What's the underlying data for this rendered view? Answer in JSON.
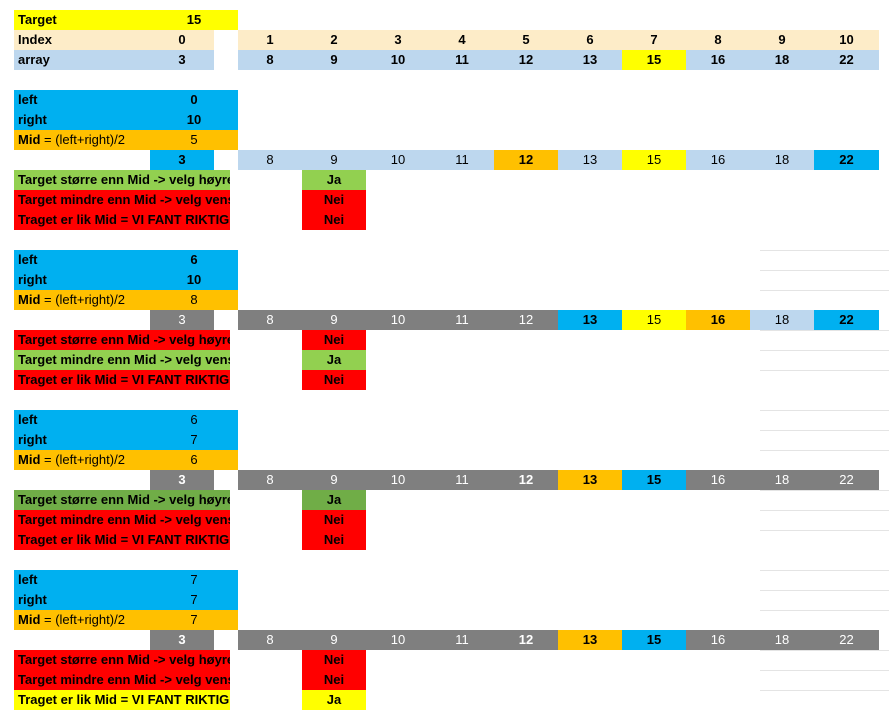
{
  "colors": {
    "yellow": "#ffff00",
    "cream": "#fdecc8",
    "lightblue": "#bdd7ee",
    "blue": "#00b0f0",
    "orange": "#ffc000",
    "gray": "#7f7f7f",
    "green": "#92d050",
    "darkgreen": "#70ad47",
    "red": "#ff0000"
  },
  "header": {
    "target_label": "Target",
    "target_value": "15",
    "index_label": "Index",
    "array_label": "array",
    "indices": [
      "0",
      "1",
      "2",
      "3",
      "4",
      "5",
      "6",
      "7",
      "8",
      "9",
      "10"
    ],
    "values": [
      "3",
      "8",
      "9",
      "10",
      "11",
      "12",
      "13",
      "15",
      "16",
      "18",
      "22"
    ],
    "target_index": 7
  },
  "steps": [
    {
      "left_label": "left",
      "left": "0",
      "right_label": "right",
      "right": "10",
      "mid_label_bold": "Mid",
      "mid_label_rest": " = (left+right)/2",
      "mid": "5",
      "cells": [
        {
          "v": "3",
          "c": "blue",
          "b": true
        },
        {
          "v": "8",
          "c": "lightblue",
          "b": false
        },
        {
          "v": "9",
          "c": "lightblue",
          "b": false
        },
        {
          "v": "10",
          "c": "lightblue",
          "b": false
        },
        {
          "v": "11",
          "c": "lightblue",
          "b": false
        },
        {
          "v": "12",
          "c": "orange",
          "b": true
        },
        {
          "v": "13",
          "c": "lightblue",
          "b": false
        },
        {
          "v": "15",
          "c": "yellow",
          "b": false
        },
        {
          "v": "16",
          "c": "lightblue",
          "b": false
        },
        {
          "v": "18",
          "c": "lightblue",
          "b": false
        },
        {
          "v": "22",
          "c": "blue",
          "b": true
        }
      ],
      "conditions": [
        {
          "text": "Target større enn Mid -> velg høyre",
          "answer": "Ja",
          "c": "green"
        },
        {
          "text": "Target mindre enn Mid -> velg venstre",
          "answer": "Nei",
          "c": "red"
        },
        {
          "text": "Traget er lik Mid = VI FANT RIKTIG INDEX",
          "answer": "Nei",
          "c": "red"
        }
      ]
    },
    {
      "left_label": "left",
      "left": "6",
      "right_label": "right",
      "right": "10",
      "mid_label_bold": "Mid",
      "mid_label_rest": " = (left+right)/2",
      "mid": "8",
      "cells": [
        {
          "v": "3",
          "c": "gray",
          "b": false
        },
        {
          "v": "8",
          "c": "gray",
          "b": false
        },
        {
          "v": "9",
          "c": "gray",
          "b": false
        },
        {
          "v": "10",
          "c": "gray",
          "b": false
        },
        {
          "v": "11",
          "c": "gray",
          "b": false
        },
        {
          "v": "12",
          "c": "gray",
          "b": false
        },
        {
          "v": "13",
          "c": "blue",
          "b": true
        },
        {
          "v": "15",
          "c": "yellow",
          "b": false
        },
        {
          "v": "16",
          "c": "orange",
          "b": true
        },
        {
          "v": "18",
          "c": "lightblue",
          "b": false
        },
        {
          "v": "22",
          "c": "blue",
          "b": true
        }
      ],
      "conditions": [
        {
          "text": "Target større enn Mid -> velg høyre",
          "answer": "Nei",
          "c": "red"
        },
        {
          "text": "Target mindre enn Mid -> velg venstre",
          "answer": "Ja",
          "c": "green"
        },
        {
          "text": "Traget er lik Mid = VI FANT RIKTIG INDEX",
          "answer": "Nei",
          "c": "red"
        }
      ]
    },
    {
      "left_label": "left",
      "left": "6",
      "right_label": "right",
      "right": "7",
      "mid_label_bold": "Mid",
      "mid_label_rest": " = (left+right)/2",
      "mid": "6",
      "cells": [
        {
          "v": "3",
          "c": "gray",
          "b": true
        },
        {
          "v": "8",
          "c": "gray",
          "b": false
        },
        {
          "v": "9",
          "c": "gray",
          "b": false
        },
        {
          "v": "10",
          "c": "gray",
          "b": false
        },
        {
          "v": "11",
          "c": "gray",
          "b": false
        },
        {
          "v": "12",
          "c": "gray",
          "b": true
        },
        {
          "v": "13",
          "c": "orange",
          "b": true
        },
        {
          "v": "15",
          "c": "blue",
          "b": true
        },
        {
          "v": "16",
          "c": "gray",
          "b": false
        },
        {
          "v": "18",
          "c": "gray",
          "b": false
        },
        {
          "v": "22",
          "c": "gray",
          "b": false
        }
      ],
      "conditions": [
        {
          "text": "Target større enn Mid -> velg høyre",
          "answer": "Ja",
          "c": "darkgreen"
        },
        {
          "text": "Target mindre enn Mid -> velg venstre",
          "answer": "Nei",
          "c": "red"
        },
        {
          "text": "Traget er lik Mid = VI FANT RIKTIG INDEX",
          "answer": "Nei",
          "c": "red"
        }
      ]
    },
    {
      "left_label": "left",
      "left": "7",
      "right_label": "right",
      "right": "7",
      "mid_label_bold": "Mid",
      "mid_label_rest": " = (left+right)/2",
      "mid": "7",
      "cells": [
        {
          "v": "3",
          "c": "gray",
          "b": true
        },
        {
          "v": "8",
          "c": "gray",
          "b": false
        },
        {
          "v": "9",
          "c": "gray",
          "b": false
        },
        {
          "v": "10",
          "c": "gray",
          "b": false
        },
        {
          "v": "11",
          "c": "gray",
          "b": false
        },
        {
          "v": "12",
          "c": "gray",
          "b": true
        },
        {
          "v": "13",
          "c": "orange",
          "b": true
        },
        {
          "v": "15",
          "c": "blue",
          "b": true
        },
        {
          "v": "16",
          "c": "gray",
          "b": false
        },
        {
          "v": "18",
          "c": "gray",
          "b": false
        },
        {
          "v": "22",
          "c": "gray",
          "b": false
        }
      ],
      "conditions": [
        {
          "text": "Target større enn Mid -> velg høyre",
          "answer": "Nei",
          "c": "red"
        },
        {
          "text": "Target mindre enn Mid -> velg venstre",
          "answer": "Nei",
          "c": "red"
        },
        {
          "text": "Traget er lik Mid = VI FANT RIKTIG INDEX",
          "answer": "Ja",
          "c": "yellow"
        }
      ]
    }
  ]
}
